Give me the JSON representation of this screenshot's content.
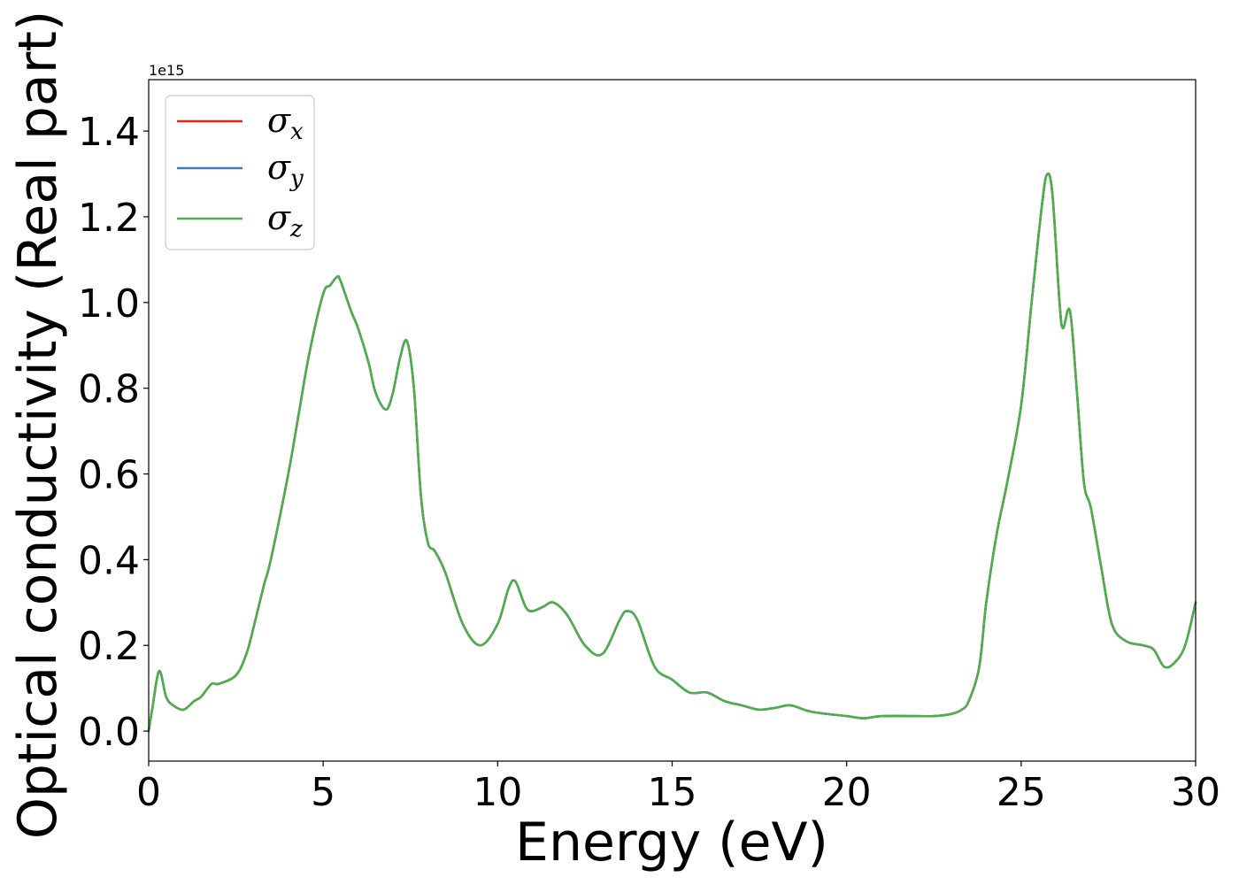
{
  "chart_data": {
    "type": "line",
    "title": "",
    "xlabel": "Energy (eV)",
    "ylabel": "Optical conductivity (Real part)",
    "y_offset_label": "1e15",
    "xlim": [
      0,
      30
    ],
    "ylim": [
      -0.07,
      1.52
    ],
    "xticks": [
      0,
      5,
      10,
      15,
      20,
      25,
      30
    ],
    "xtick_labels": [
      "0",
      "5",
      "10",
      "15",
      "20",
      "25",
      "30"
    ],
    "yticks": [
      0.0,
      0.2,
      0.4,
      0.6,
      0.8,
      1.0,
      1.2,
      1.4
    ],
    "ytick_labels": [
      "0.0",
      "0.2",
      "0.4",
      "0.6",
      "0.8",
      "1.0",
      "1.2",
      "1.4"
    ],
    "grid": false,
    "legend_position": "top-left",
    "series": [
      {
        "name": "σx",
        "symbol": "σ",
        "subscript": "x",
        "color": "#d62728"
      },
      {
        "name": "σy",
        "symbol": "σ",
        "subscript": "y",
        "color": "#3a7fb5"
      },
      {
        "name": "σz",
        "symbol": "σ",
        "subscript": "z",
        "color": "#4daf4a"
      }
    ],
    "shared_curve_note_removed": true,
    "x": [
      0,
      0.1,
      0.3,
      0.5,
      0.7,
      1.0,
      1.3,
      1.5,
      1.8,
      2.0,
      2.5,
      2.8,
      3.0,
      3.3,
      3.5,
      4.0,
      4.3,
      4.6,
      5.0,
      5.2,
      5.4,
      5.5,
      5.8,
      6.0,
      6.3,
      6.5,
      6.8,
      7.0,
      7.2,
      7.4,
      7.6,
      7.8,
      8.0,
      8.2,
      8.5,
      9.0,
      9.5,
      10.0,
      10.3,
      10.5,
      10.8,
      11.0,
      11.3,
      11.6,
      12.0,
      12.5,
      13.0,
      13.5,
      13.7,
      14.0,
      14.5,
      15.0,
      15.5,
      16.0,
      16.5,
      17.0,
      17.5,
      18.0,
      18.4,
      19.0,
      20.0,
      20.5,
      21.0,
      22.0,
      22.5,
      23.0,
      23.3,
      23.5,
      23.8,
      24.0,
      24.3,
      24.6,
      25.0,
      25.3,
      25.6,
      25.75,
      25.9,
      26.1,
      26.2,
      26.4,
      26.6,
      26.8,
      27.0,
      27.3,
      27.6,
      28.0,
      28.5,
      28.8,
      29.1,
      29.4,
      29.7,
      30.0
    ],
    "y": [
      0.0,
      0.05,
      0.14,
      0.08,
      0.06,
      0.05,
      0.07,
      0.08,
      0.11,
      0.11,
      0.13,
      0.18,
      0.24,
      0.34,
      0.4,
      0.6,
      0.74,
      0.88,
      1.02,
      1.04,
      1.06,
      1.05,
      0.98,
      0.94,
      0.86,
      0.79,
      0.75,
      0.79,
      0.87,
      0.91,
      0.8,
      0.55,
      0.44,
      0.42,
      0.37,
      0.25,
      0.2,
      0.25,
      0.33,
      0.35,
      0.29,
      0.28,
      0.29,
      0.3,
      0.27,
      0.2,
      0.18,
      0.26,
      0.28,
      0.26,
      0.15,
      0.12,
      0.09,
      0.09,
      0.07,
      0.06,
      0.05,
      0.055,
      0.06,
      0.045,
      0.035,
      0.03,
      0.035,
      0.035,
      0.035,
      0.04,
      0.05,
      0.07,
      0.15,
      0.3,
      0.46,
      0.58,
      0.76,
      1.0,
      1.23,
      1.3,
      1.25,
      1.0,
      0.94,
      0.98,
      0.79,
      0.58,
      0.52,
      0.38,
      0.25,
      0.21,
      0.2,
      0.19,
      0.15,
      0.16,
      0.2,
      0.3
    ]
  }
}
